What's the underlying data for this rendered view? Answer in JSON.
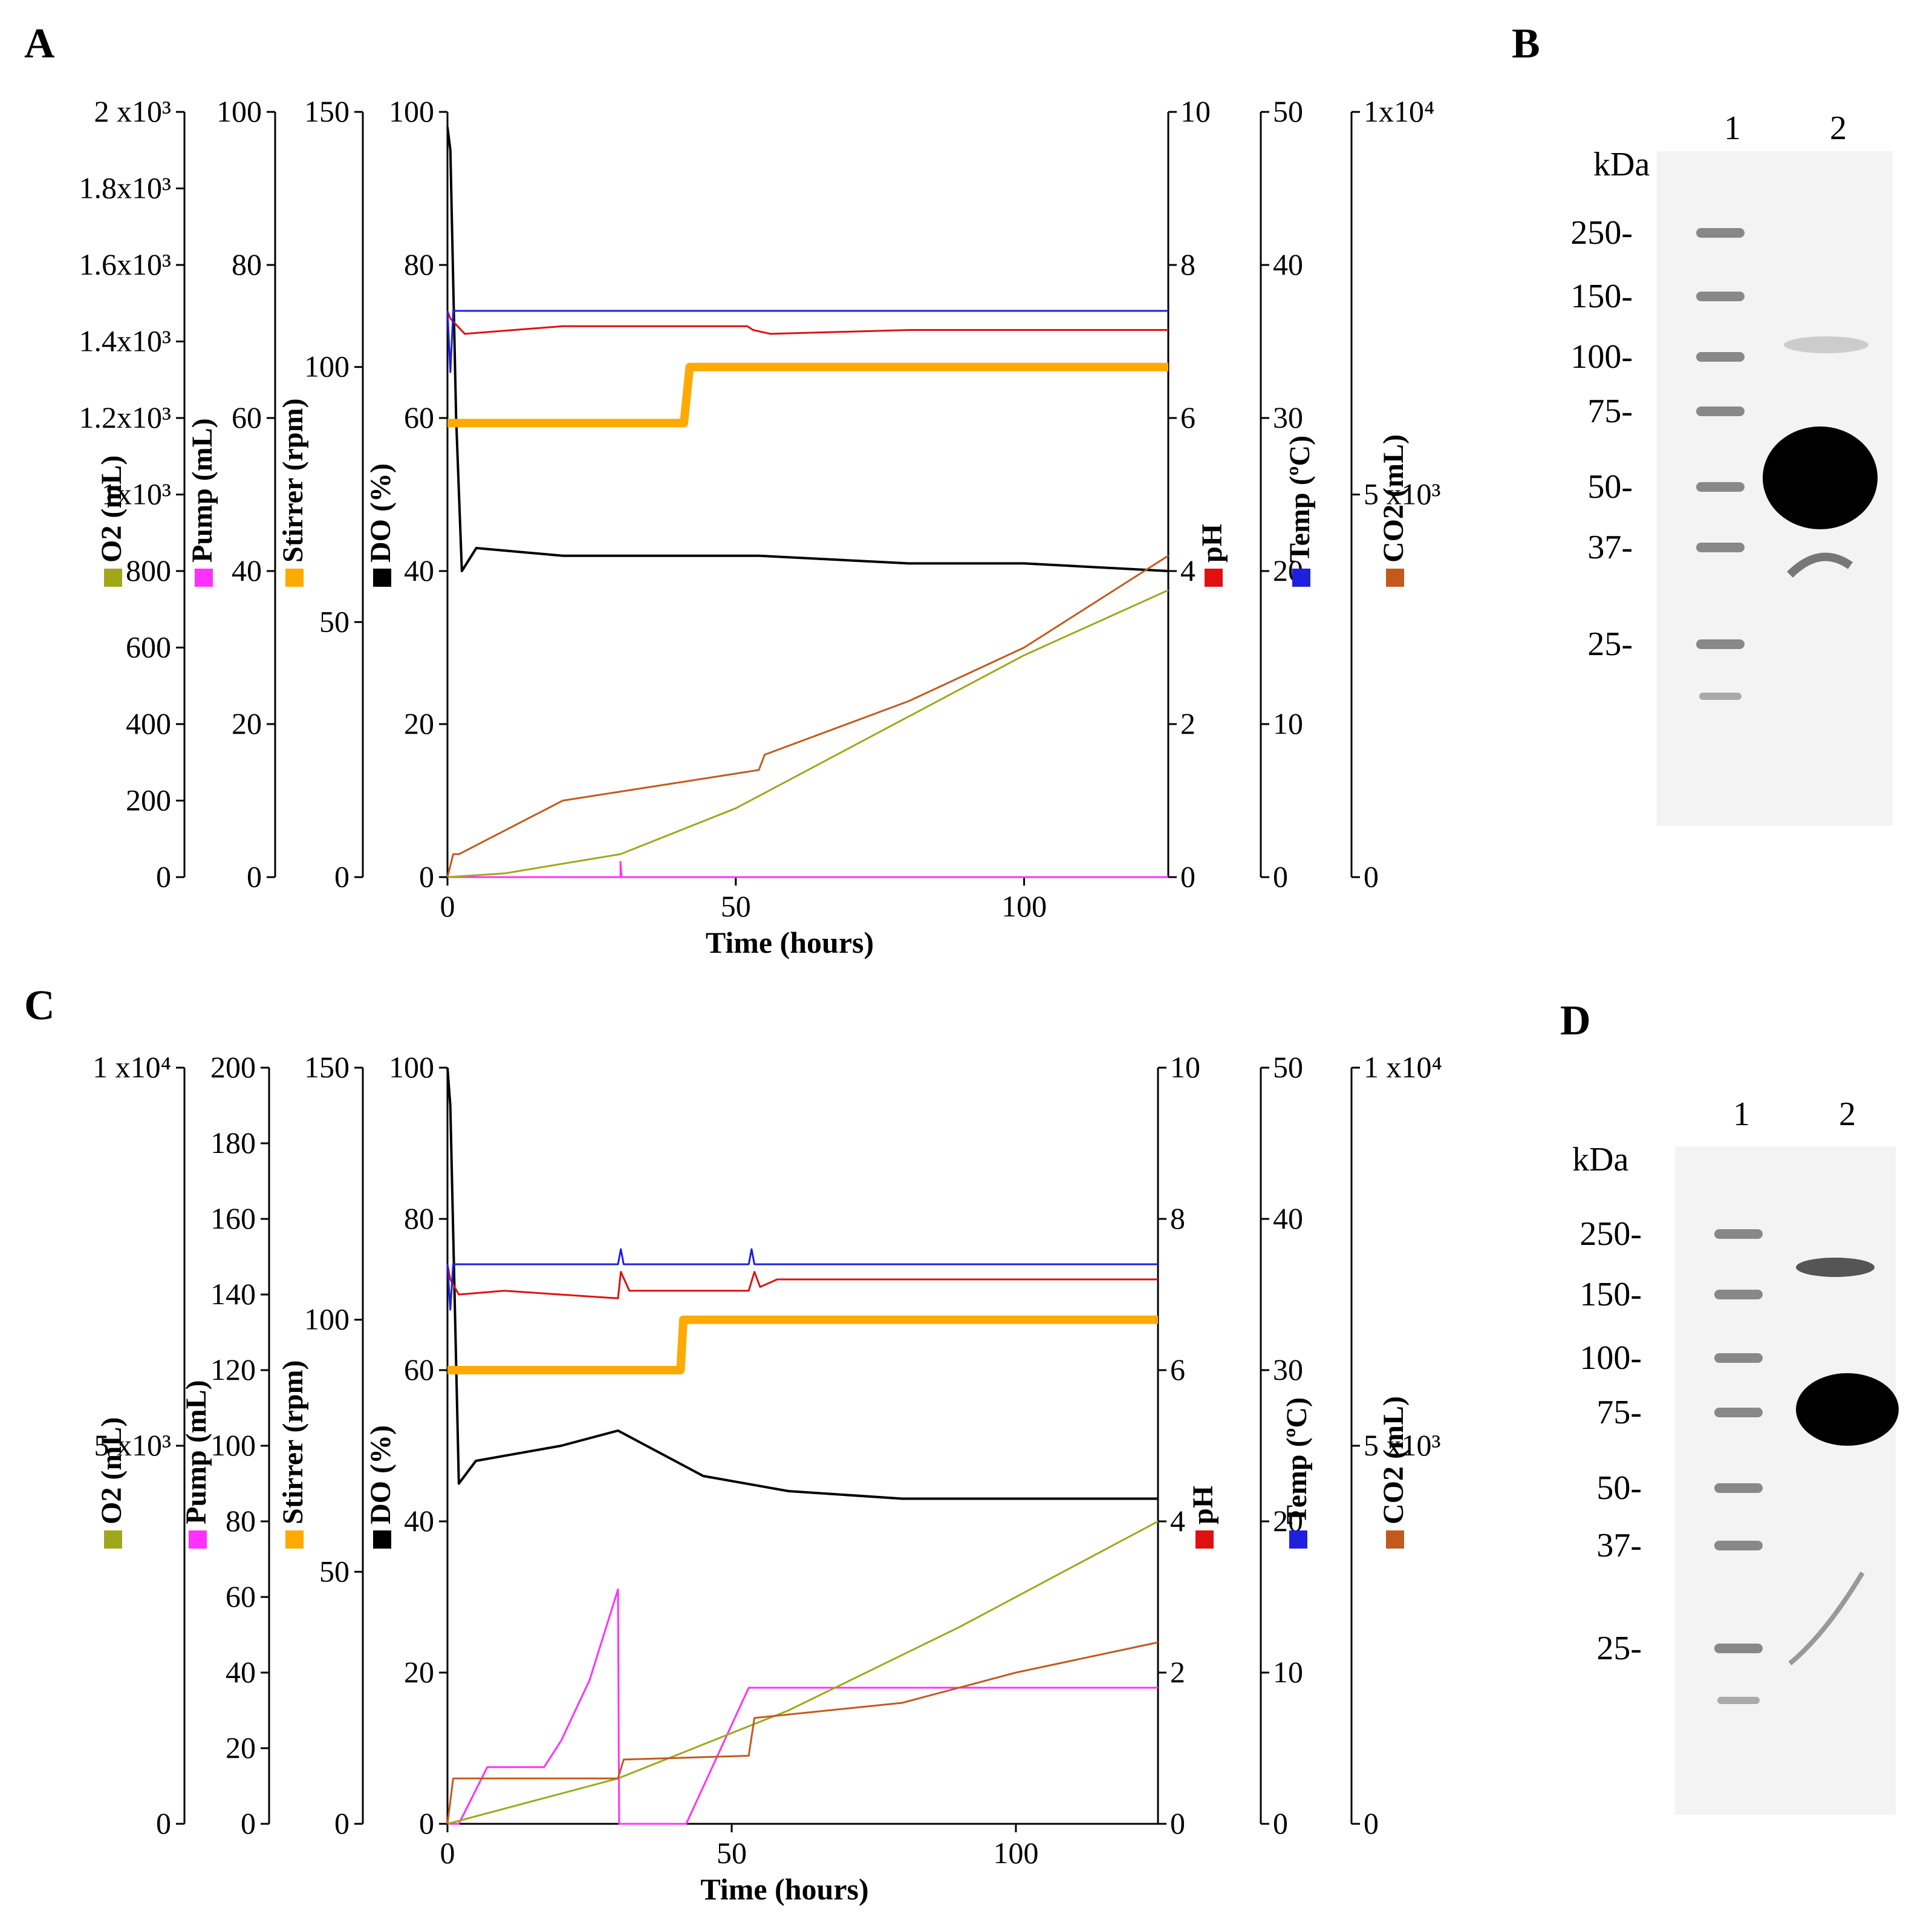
{
  "colors": {
    "do": "#000000",
    "ph": "#e01010",
    "temp": "#1f1fe0",
    "stirrer": "#ffaa00",
    "pump": "#ff30ff",
    "o2": "#a0a81a",
    "co2": "#c35a1c"
  },
  "panels": [
    {
      "letter": "A",
      "xlabel": "Time (hours)",
      "xticks": [
        "0",
        "50",
        "100"
      ],
      "left_axes": [
        {
          "name": "o2-axis",
          "label": "O2 (mL)",
          "ticks": [
            "0",
            "200",
            "400",
            "600",
            "800",
            "1x10³",
            "1.2x10³",
            "1.4x10³",
            "1.6x10³",
            "1.8x10³",
            "2 x10³"
          ],
          "color": "#a0a81a"
        },
        {
          "name": "pump-axis",
          "label": "Pump (mL)",
          "ticks": [
            "0",
            "20",
            "40",
            "60",
            "80",
            "100"
          ],
          "color": "#ff30ff"
        },
        {
          "name": "stirrer-axis",
          "label": "Stirrer (rpm)",
          "ticks": [
            "0",
            "50",
            "100",
            "150"
          ],
          "color": "#ffaa00"
        },
        {
          "name": "do-axis",
          "label": "DO (%)",
          "ticks": [
            "0",
            "20",
            "40",
            "60",
            "80",
            "100"
          ],
          "color": "#000000"
        }
      ],
      "right_axes": [
        {
          "name": "ph-axis",
          "label": "pH",
          "ticks": [
            "0",
            "2",
            "4",
            "6",
            "8",
            "10"
          ],
          "color": "#e01010"
        },
        {
          "name": "temp-axis",
          "label": "Temp (ºC)",
          "ticks": [
            "0",
            "10",
            "20",
            "30",
            "40",
            "50"
          ],
          "color": "#1f1fe0"
        },
        {
          "name": "co2-axis",
          "label": "CO2 (mL)",
          "ticks": [
            "0",
            "5 x10³",
            "1x10⁴"
          ],
          "color": "#c35a1c"
        }
      ]
    },
    {
      "letter": "C",
      "xlabel": "Time (hours)",
      "xticks": [
        "0",
        "50",
        "100"
      ],
      "left_axes": [
        {
          "name": "o2-axis",
          "label": "O2 (mL)",
          "ticks": [
            "0",
            "5 x10³",
            "1 x10⁴"
          ],
          "color": "#a0a81a"
        },
        {
          "name": "pump-axis",
          "label": "Pump (mL)",
          "ticks": [
            "0",
            "20",
            "40",
            "60",
            "80",
            "100",
            "120",
            "140",
            "160",
            "180",
            "200"
          ],
          "color": "#ff30ff"
        },
        {
          "name": "stirrer-axis",
          "label": "Stirrer (rpm)",
          "ticks": [
            "0",
            "50",
            "100",
            "150"
          ],
          "color": "#ffaa00"
        },
        {
          "name": "do-axis",
          "label": "DO (%)",
          "ticks": [
            "0",
            "20",
            "40",
            "60",
            "80",
            "100"
          ],
          "color": "#000000"
        }
      ],
      "right_axes": [
        {
          "name": "ph-axis",
          "label": "pH",
          "ticks": [
            "0",
            "2",
            "4",
            "6",
            "8",
            "10"
          ],
          "color": "#e01010"
        },
        {
          "name": "temp-axis",
          "label": "Temp (ºC)",
          "ticks": [
            "0",
            "10",
            "20",
            "30",
            "40",
            "50"
          ],
          "color": "#1f1fe0"
        },
        {
          "name": "co2-axis",
          "label": "CO2 (mL)",
          "ticks": [
            "0",
            "5 x10³",
            "1 x10⁴"
          ],
          "color": "#c35a1c"
        }
      ]
    }
  ],
  "gels": [
    {
      "letter": "B",
      "unit": "kDa",
      "lanes": [
        "1",
        "2"
      ],
      "markers": [
        "250-",
        "150-",
        "100-",
        "75-",
        "50-",
        "37-",
        "25-"
      ]
    },
    {
      "letter": "D",
      "unit": "kDa",
      "lanes": [
        "1",
        "2"
      ],
      "markers": [
        "250-",
        "150-",
        "100-",
        "75-",
        "50-",
        "37-",
        "25-"
      ]
    }
  ],
  "chart_data": [
    {
      "type": "line",
      "panel": "A",
      "xlabel": "Time (hours)",
      "xlim": [
        0,
        125
      ],
      "series": [
        {
          "name": "DO (%)",
          "axis": "do",
          "ylim": [
            0,
            100
          ],
          "x": [
            0,
            0.5,
            1.5,
            2.5,
            5,
            20,
            54,
            80,
            100,
            125
          ],
          "y": [
            98,
            95,
            60,
            40,
            43,
            42,
            42,
            41,
            41,
            40
          ]
        },
        {
          "name": "pH",
          "axis": "ph",
          "ylim": [
            0,
            10
          ],
          "x": [
            0,
            0.5,
            3,
            20,
            52,
            53,
            56,
            80,
            125
          ],
          "y": [
            7.4,
            7.3,
            7.1,
            7.2,
            7.2,
            7.15,
            7.1,
            7.15,
            7.15
          ]
        },
        {
          "name": "Temp (ºC)",
          "axis": "temp",
          "ylim": [
            0,
            50
          ],
          "x": [
            0,
            0.5,
            1,
            54,
            125
          ],
          "y": [
            37,
            33,
            37,
            37,
            37
          ]
        },
        {
          "name": "Stirrer (rpm)",
          "axis": "stirrer",
          "ylim": [
            0,
            150
          ],
          "x": [
            0,
            41,
            42,
            125
          ],
          "y": [
            89,
            89,
            100,
            100
          ]
        },
        {
          "name": "Pump (mL)",
          "axis": "pump",
          "ylim": [
            0,
            100
          ],
          "x": [
            0,
            30,
            30,
            30.2,
            125
          ],
          "y": [
            0,
            0,
            2,
            0,
            0
          ]
        },
        {
          "name": "O2 (mL)",
          "axis": "o2",
          "ylim": [
            0,
            2000
          ],
          "x": [
            0,
            10,
            30,
            50,
            75,
            100,
            125
          ],
          "y": [
            0,
            10,
            60,
            180,
            380,
            580,
            750
          ]
        },
        {
          "name": "CO2 (mL)",
          "axis": "co2",
          "ylim": [
            0,
            10000
          ],
          "x": [
            0,
            1,
            2,
            20,
            54,
            55,
            80,
            100,
            125
          ],
          "y": [
            0,
            300,
            300,
            1000,
            1400,
            1600,
            2300,
            3000,
            4200
          ]
        }
      ]
    },
    {
      "type": "line",
      "panel": "C",
      "xlabel": "Time (hours)",
      "xlim": [
        0,
        125
      ],
      "series": [
        {
          "name": "DO (%)",
          "axis": "do",
          "ylim": [
            0,
            100
          ],
          "x": [
            0,
            0.5,
            2,
            5,
            20,
            30,
            45,
            60,
            80,
            100,
            125
          ],
          "y": [
            100,
            95,
            45,
            48,
            50,
            52,
            46,
            44,
            43,
            43,
            43
          ]
        },
        {
          "name": "pH",
          "axis": "ph",
          "ylim": [
            0,
            10
          ],
          "x": [
            0,
            0.5,
            2,
            10,
            30,
            30.5,
            32,
            53,
            54,
            55,
            58,
            125
          ],
          "y": [
            7.4,
            7.2,
            7.0,
            7.05,
            6.95,
            7.3,
            7.05,
            7.05,
            7.3,
            7.1,
            7.2,
            7.2
          ]
        },
        {
          "name": "Temp (ºC)",
          "axis": "temp",
          "ylim": [
            0,
            50
          ],
          "x": [
            0,
            0.5,
            1,
            30,
            30.5,
            31,
            53,
            53.5,
            54,
            125
          ],
          "y": [
            37,
            34,
            37,
            37,
            38,
            37,
            37,
            38,
            37,
            37
          ]
        },
        {
          "name": "Stirrer (rpm)",
          "axis": "stirrer",
          "ylim": [
            0,
            150
          ],
          "x": [
            0,
            41,
            41.5,
            125
          ],
          "y": [
            90,
            90,
            100,
            100
          ]
        },
        {
          "name": "Pump (mL)",
          "axis": "pump",
          "ylim": [
            0,
            200
          ],
          "x": [
            0,
            2,
            7,
            17,
            20,
            25,
            30,
            30.2,
            42,
            53,
            125
          ],
          "y": [
            0,
            0,
            15,
            15,
            22,
            38,
            62,
            0,
            0,
            36,
            36
          ]
        },
        {
          "name": "O2 (mL)",
          "axis": "o2",
          "ylim": [
            0,
            10000
          ],
          "x": [
            0,
            30,
            60,
            90,
            125
          ],
          "y": [
            0,
            600,
            1500,
            2600,
            4000
          ]
        },
        {
          "name": "CO2 (mL)",
          "axis": "co2",
          "ylim": [
            0,
            10000
          ],
          "x": [
            0,
            1,
            30,
            31,
            53,
            54,
            80,
            100,
            125
          ],
          "y": [
            0,
            600,
            600,
            850,
            900,
            1400,
            1600,
            2000,
            2400
          ]
        }
      ]
    }
  ]
}
